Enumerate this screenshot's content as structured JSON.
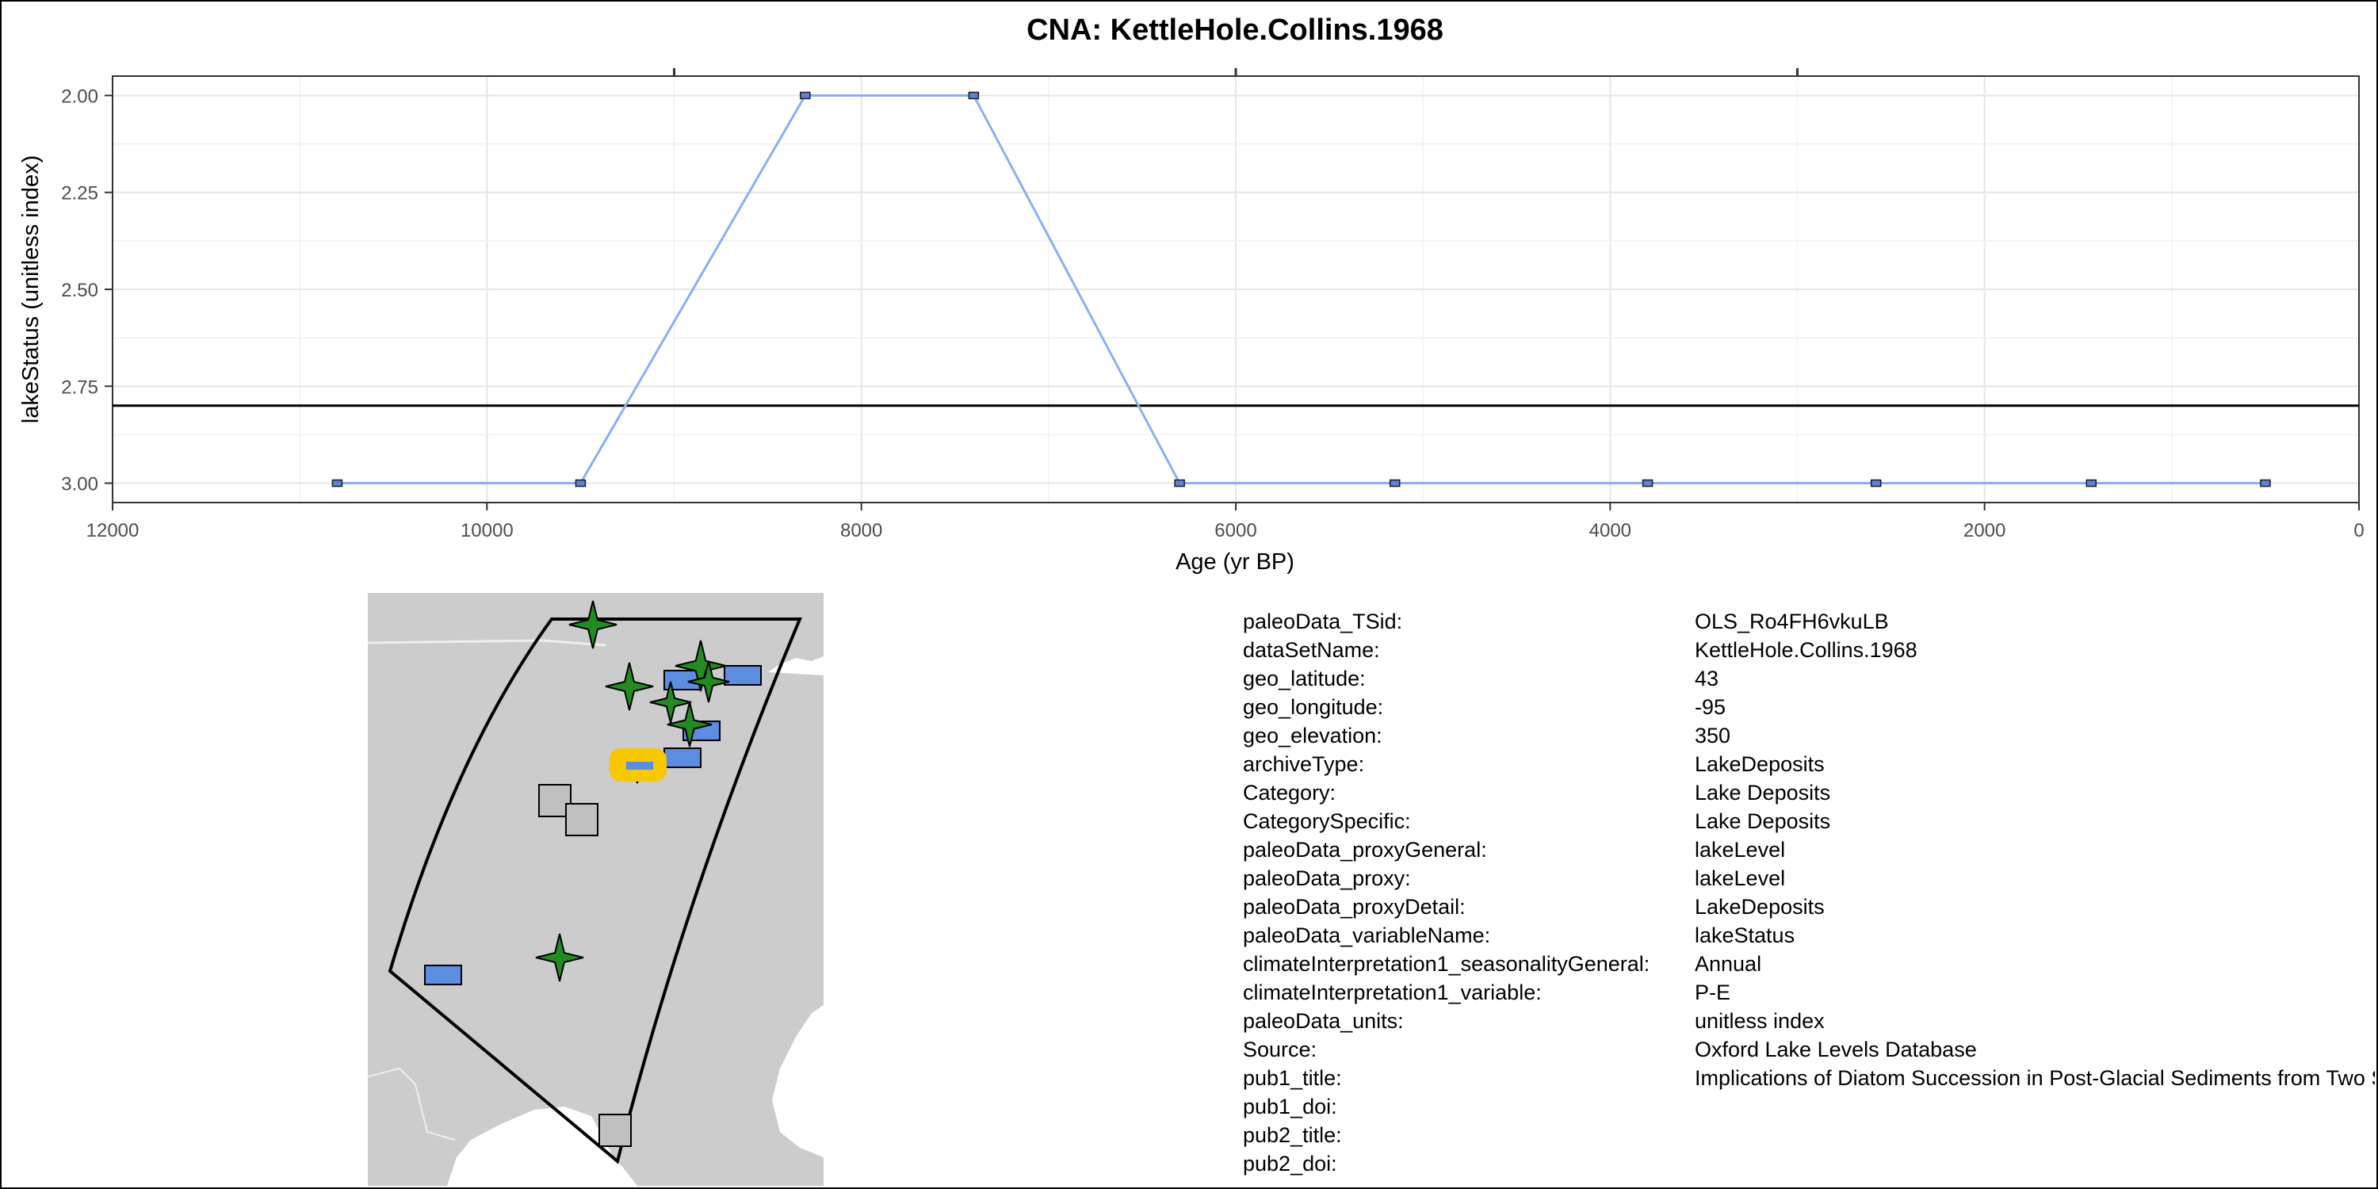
{
  "chart_data": {
    "type": "line",
    "title": "CNA: KettleHole.Collins.1968",
    "xlabel": "Age (yr BP)",
    "ylabel": "lakeStatus (unitless index)",
    "x_reversed": true,
    "y_reversed": true,
    "xlim": [
      12000,
      0
    ],
    "ylim": [
      3.05,
      1.95
    ],
    "x_ticks": [
      12000,
      10000,
      8000,
      6000,
      4000,
      2000,
      0
    ],
    "x_tick_labels": [
      "12000",
      "10000",
      "8000",
      "6000",
      "4000",
      "2000",
      "0"
    ],
    "y_ticks": [
      2.0,
      2.25,
      2.5,
      2.75,
      3.0
    ],
    "y_tick_labels": [
      "2.00",
      "2.25",
      "2.50",
      "2.75",
      "3.00"
    ],
    "grid": true,
    "reference_line_y": 2.8,
    "line_color": "#8aaff0",
    "marker_color": "#5b84d8",
    "series": [
      {
        "x": [
          10800,
          9500,
          8300,
          7400,
          6300,
          5150,
          3800,
          2580,
          1430,
          500
        ],
        "y": [
          3.0,
          3.0,
          2.0,
          2.0,
          3.0,
          3.0,
          3.0,
          3.0,
          3.0,
          3.0
        ]
      }
    ]
  },
  "map": {
    "land_color": "#cccccc",
    "water_color": "#ffffff",
    "highlight_color": "#f5c800",
    "legend": {
      "star_color": "#228b22",
      "rect_color": "#5b8de0",
      "square_color": "#c0c0c0"
    }
  },
  "metadata": [
    {
      "key": "paleoData_TSid:",
      "value": "OLS_Ro4FH6vkuLB"
    },
    {
      "key": "dataSetName:",
      "value": "KettleHole.Collins.1968"
    },
    {
      "key": "geo_latitude:",
      "value": "43"
    },
    {
      "key": "geo_longitude:",
      "value": "-95"
    },
    {
      "key": "geo_elevation:",
      "value": "350"
    },
    {
      "key": "archiveType:",
      "value": "LakeDeposits"
    },
    {
      "key": "Category:",
      "value": "Lake Deposits"
    },
    {
      "key": "CategorySpecific:",
      "value": "Lake Deposits"
    },
    {
      "key": "paleoData_proxyGeneral:",
      "value": "lakeLevel"
    },
    {
      "key": "paleoData_proxy:",
      "value": "lakeLevel"
    },
    {
      "key": "paleoData_proxyDetail:",
      "value": "LakeDeposits"
    },
    {
      "key": "paleoData_variableName:",
      "value": "lakeStatus"
    },
    {
      "key": "climateInterpretation1_seasonalityGeneral:",
      "value": "Annual"
    },
    {
      "key": "climateInterpretation1_variable:",
      "value": "P-E"
    },
    {
      "key": "paleoData_units:",
      "value": "unitless index"
    },
    {
      "key": "Source:",
      "value": "Oxford Lake Levels Database"
    },
    {
      "key": "pub1_title:",
      "value": "Implications of Diatom Succession in Post-Glacial Sediments from Two Sites in Northern Iowa"
    },
    {
      "key": "pub1_doi:",
      "value": ""
    },
    {
      "key": "pub2_title:",
      "value": ""
    },
    {
      "key": "pub2_doi:",
      "value": ""
    }
  ]
}
